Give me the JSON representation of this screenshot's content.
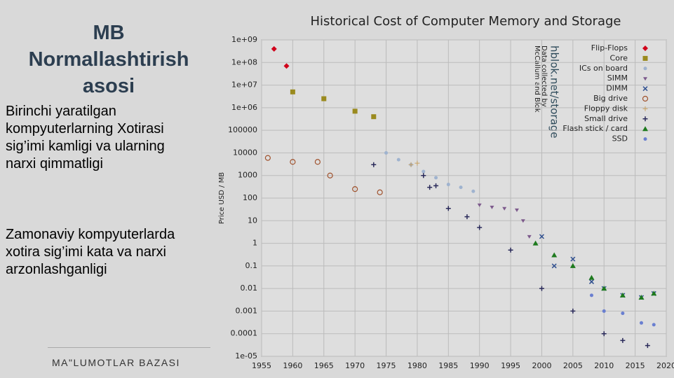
{
  "slide": {
    "title": "MB Normallashtirish asosi",
    "paragraphs": [
      "Birinchi yaratilgan kompyuterlarning Xotirasi sig’imi kamligi va ularning narxi qimmatligi",
      "Zamonaviy kompyuterlarda xotira sig’imi kata va narxi arzonlashganligi"
    ],
    "footer": "MA\"LUMOTLAR BAZASI"
  },
  "chart_data": {
    "type": "scatter",
    "title": "Historical Cost of Computer Memory and Storage",
    "ylabel": "Price USD / MB",
    "annotations": [
      "hblok.net/storage",
      "Data collected by",
      "McCallum and Blok"
    ],
    "log_y": true,
    "grid": true,
    "legend": "upper right",
    "xlim": [
      1955,
      2020
    ],
    "xticks": [
      1955,
      1960,
      1965,
      1970,
      1975,
      1980,
      1985,
      1990,
      1995,
      2000,
      2005,
      2010,
      2015,
      2020
    ],
    "ylim": [
      1e-05,
      1000000000
    ],
    "yticks": [
      {
        "value": 1000000000,
        "label": "1e+09"
      },
      {
        "value": 100000000,
        "label": "1e+08"
      },
      {
        "value": 10000000,
        "label": "1e+07"
      },
      {
        "value": 1000000,
        "label": "1e+06"
      },
      100000,
      10000,
      1000,
      100,
      10,
      1,
      0.1,
      0.01,
      0.001,
      0.0001,
      {
        "value": 1e-05,
        "label": "1e-05"
      }
    ],
    "series": [
      {
        "name": "Flip-Flops",
        "color": "#d0021b",
        "marker": "diamond",
        "x": [
          1957,
          1959
        ],
        "values": [
          400000000,
          70000000
        ]
      },
      {
        "name": "Core",
        "color": "#9a8a1e",
        "marker": "square",
        "x": [
          1960,
          1965,
          1970,
          1973
        ],
        "values": [
          5000000,
          2500000,
          700000,
          400000
        ]
      },
      {
        "name": "ICs on board",
        "color": "#9fb3cf",
        "marker": "dot",
        "x": [
          1975,
          1977,
          1979,
          1981,
          1983,
          1985,
          1987,
          1989
        ],
        "values": [
          10000,
          5000,
          3000,
          1500,
          800,
          400,
          300,
          200
        ]
      },
      {
        "name": "SIMM",
        "color": "#7d5a8c",
        "marker": "tri-down",
        "x": [
          1990,
          1992,
          1994,
          1996,
          1997,
          1998
        ],
        "values": [
          50,
          40,
          35,
          30,
          10,
          2
        ]
      },
      {
        "name": "DIMM",
        "color": "#2f4f8f",
        "marker": "cross",
        "x": [
          2000,
          2002,
          2005,
          2008,
          2010,
          2013,
          2016,
          2018
        ],
        "values": [
          2,
          0.1,
          0.2,
          0.02,
          0.01,
          0.005,
          0.004,
          0.006
        ]
      },
      {
        "name": "Big drive",
        "color": "#a0522d",
        "marker": "circle",
        "x": [
          1956,
          1960,
          1964,
          1966,
          1970,
          1974
        ],
        "values": [
          6000,
          4000,
          4000,
          1000,
          250,
          180
        ]
      },
      {
        "name": "Floppy disk",
        "color": "#c8a060",
        "marker": "plus-thin",
        "x": [
          1979,
          1980
        ],
        "values": [
          3000,
          3500
        ]
      },
      {
        "name": "Small drive",
        "color": "#2a2a5a",
        "marker": "plus",
        "x": [
          1973,
          1981,
          1982,
          1983,
          1985,
          1988,
          1990,
          1995,
          2000,
          2005,
          2010,
          2013,
          2017
        ],
        "values": [
          3000,
          1000,
          300,
          350,
          35,
          15,
          5,
          0.5,
          0.01,
          0.001,
          0.0001,
          5e-05,
          3e-05
        ]
      },
      {
        "name": "Flash stick / card",
        "color": "#1e7a1e",
        "marker": "triangle",
        "x": [
          1999,
          2002,
          2005,
          2008,
          2010,
          2013,
          2016,
          2018
        ],
        "values": [
          1,
          0.3,
          0.1,
          0.03,
          0.01,
          0.005,
          0.004,
          0.006
        ]
      },
      {
        "name": "SSD",
        "color": "#6a7fd0",
        "marker": "dot",
        "x": [
          2008,
          2010,
          2013,
          2016,
          2018
        ],
        "values": [
          0.005,
          0.001,
          0.0008,
          0.0003,
          0.00025
        ]
      }
    ]
  }
}
